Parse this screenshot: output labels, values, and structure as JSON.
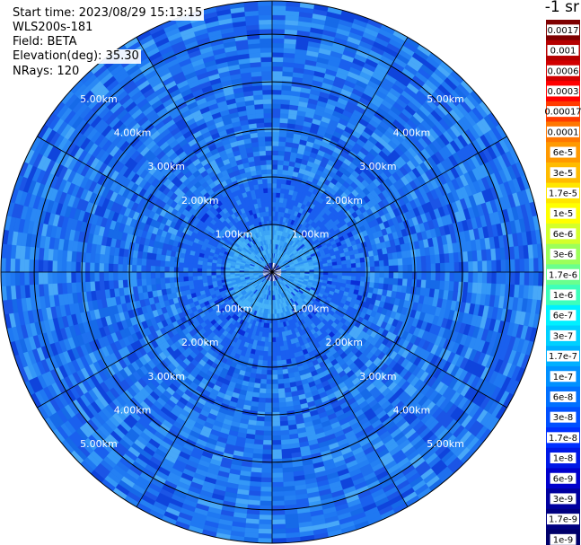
{
  "info": {
    "start_time": "Start time: 2023/08/29 15:13:15",
    "instrument": "WLS200s-181",
    "field": "Field: BETA",
    "elevation": "Elevation(deg): 35.30",
    "nrays": "NRays: 120"
  },
  "colorbar": {
    "unit": "-1 sr",
    "labels": [
      "0.0017",
      "0.001",
      "0.0006",
      "0.0003",
      "0.00017",
      "0.0001",
      "6e-5",
      "3e-5",
      "1.7e-5",
      "1e-5",
      "6e-6",
      "3e-6",
      "1.7e-6",
      "1e-6",
      "6e-7",
      "3e-7",
      "1.7e-7",
      "1e-7",
      "6e-8",
      "3e-8",
      "1.7e-8",
      "1e-8",
      "6e-9",
      "3e-9",
      "1.7e-9",
      "1e-9"
    ],
    "colors": [
      "#7f0000",
      "#b50000",
      "#d10000",
      "#ff0000",
      "#ff3b00",
      "#ff7700",
      "#ff9900",
      "#ffbb00",
      "#ffe600",
      "#ffff00",
      "#d4ff2a",
      "#9cff5a",
      "#6aff8d",
      "#3dffba",
      "#00f0ff",
      "#00d0ff",
      "#00b0ff",
      "#0090ff",
      "#0070ff",
      "#0050ff",
      "#0030ff",
      "#0018e6",
      "#0000cc",
      "#00009f",
      "#000080",
      "#00006a"
    ]
  },
  "chart_data": {
    "type": "heatmap",
    "projection": "polar PPI",
    "field": "BETA",
    "unit": "-1 sr",
    "elevation_deg": 35.3,
    "nrays": 120,
    "range_rings_km": [
      1,
      2,
      3,
      4,
      5
    ],
    "range_labels": [
      "1.00km",
      "2.00km",
      "3.00km",
      "4.00km",
      "5.00km"
    ],
    "max_range_km": 5.7,
    "spokes_deg": [
      0,
      30,
      60,
      90,
      120,
      150,
      180,
      210,
      240,
      270,
      300,
      330
    ],
    "dominant_value_range": [
      "1e-8",
      "1.7e-8"
    ],
    "grid": true,
    "legend": "right"
  }
}
